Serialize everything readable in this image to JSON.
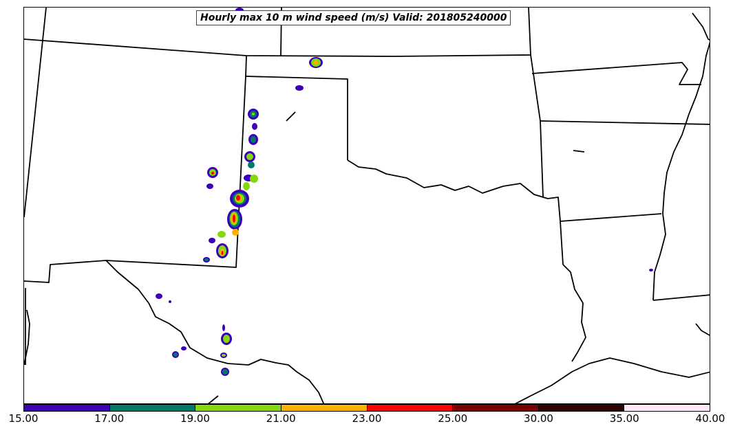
{
  "map": {
    "title": "Hourly max 10 m wind speed (m/s) Valid: 201805240000",
    "legend": {
      "ticks": [
        "15.00",
        "17.00",
        "19.00",
        "21.00",
        "23.00",
        "25.00",
        "30.00",
        "35.00",
        "40.00"
      ],
      "colors": [
        "#3d00b8",
        "#00786a",
        "#86d80e",
        "#ffb100",
        "#ff0000",
        "#7a0000",
        "#330000",
        "#ffe6fa"
      ]
    }
  }
}
